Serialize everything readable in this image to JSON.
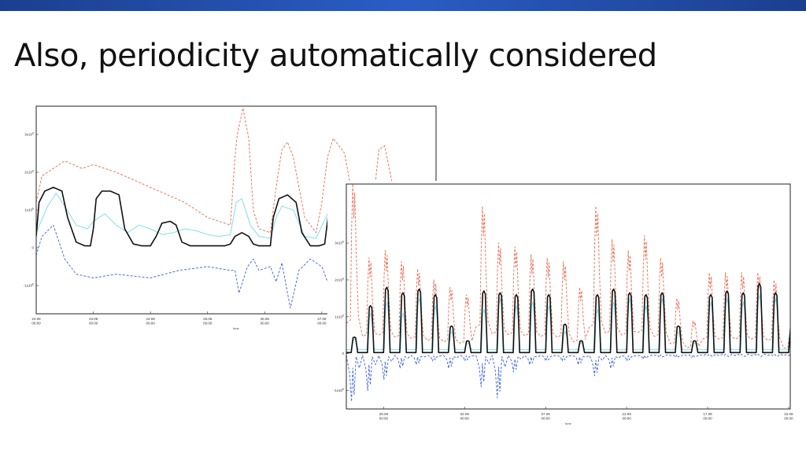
{
  "slide": {
    "title": "Also, periodicity automatically considered",
    "accent_color": "#1f4ea8"
  },
  "chart_data": [
    {
      "type": "line",
      "title": "",
      "xlabel": "time",
      "ylabel": "",
      "x_ticks": [
        [
          "22.08",
          "00:00"
        ],
        [
          "23.08",
          "00:00"
        ],
        [
          "24.08",
          "00:00"
        ],
        [
          "25.08",
          "00:00"
        ],
        [
          "26.08",
          "00:00"
        ],
        [
          "27.08",
          "00:00"
        ],
        [
          "28.08",
          "00:00"
        ],
        [
          "29.08",
          "00:00"
        ]
      ],
      "xlim": [
        0,
        7
      ],
      "y_ticks": [
        "-1x10⁶",
        "0",
        "1x10⁶",
        "2x10⁶",
        "3x10⁶"
      ],
      "y_tick_values": [
        -1,
        0,
        1,
        2,
        3
      ],
      "ylim": [
        -1.75,
        3.75
      ],
      "y_unit": "1e6",
      "grid": false,
      "legend": "none",
      "series": [
        {
          "role": "upper-bound",
          "style": "dashed",
          "color": "#e8775f",
          "x": [
            0,
            0.1,
            0.3,
            0.5,
            0.8,
            1.0,
            1.4,
            2.0,
            2.6,
            3.0,
            3.4,
            3.48,
            3.52,
            3.62,
            3.72,
            3.8,
            3.9,
            4.1,
            4.2,
            4.3,
            4.4,
            4.5,
            4.7,
            4.9,
            5.0,
            5.1,
            5.2,
            5.4,
            5.6,
            5.8,
            5.9,
            6.0,
            6.1,
            6.3,
            6.5,
            6.7,
            6.9,
            7.0
          ],
          "y": [
            1.2,
            1.9,
            2.1,
            2.3,
            2.1,
            2.2,
            2.0,
            1.6,
            1.2,
            0.8,
            0.6,
            2.4,
            3.0,
            3.7,
            2.9,
            1.0,
            0.5,
            0.4,
            1.6,
            2.6,
            2.8,
            2.4,
            0.8,
            0.4,
            1.2,
            2.4,
            2.9,
            2.5,
            0.8,
            0.5,
            1.2,
            2.6,
            2.7,
            1.2,
            0.8,
            0.4,
            0.35,
            0.3
          ]
        },
        {
          "role": "lower-bound",
          "style": "dashed",
          "color": "#4a6fd8",
          "x": [
            0,
            0.1,
            0.3,
            0.5,
            0.7,
            1.0,
            1.4,
            2.0,
            2.5,
            3.0,
            3.4,
            3.48,
            3.55,
            3.7,
            3.8,
            3.9,
            4.1,
            4.2,
            4.3,
            4.45,
            4.6,
            4.8,
            5.0,
            5.1,
            5.2,
            5.4,
            5.6,
            5.8,
            6.0,
            6.1,
            6.3,
            6.5,
            7.0
          ],
          "y": [
            -0.2,
            0.3,
            0.6,
            -0.3,
            -0.7,
            -0.8,
            -0.7,
            -0.8,
            -0.6,
            -0.5,
            -0.6,
            -0.6,
            -1.2,
            -0.5,
            -0.3,
            -0.6,
            -0.5,
            -0.9,
            -0.4,
            -1.6,
            -0.6,
            -0.3,
            -0.5,
            -0.9,
            -0.3,
            -0.5,
            -0.4,
            -0.7,
            -0.3,
            0.3,
            -0.2,
            -0.25,
            -0.2
          ]
        },
        {
          "role": "expected",
          "style": "solid",
          "color": "#7fe0e8",
          "x": [
            0,
            0.2,
            0.35,
            0.5,
            0.7,
            0.9,
            1.0,
            1.2,
            1.4,
            1.6,
            1.8,
            2.0,
            2.2,
            2.4,
            2.6,
            2.8,
            3.0,
            3.2,
            3.4,
            3.5,
            3.6,
            3.75,
            3.9,
            4.1,
            4.2,
            4.3,
            4.5,
            4.7,
            4.9,
            5.1,
            5.2,
            5.4,
            5.6,
            5.8,
            5.9,
            6.0,
            6.2,
            6.4,
            6.6,
            7.0
          ],
          "y": [
            0.4,
            1.1,
            1.45,
            1.1,
            0.6,
            0.5,
            0.7,
            0.9,
            0.6,
            0.4,
            0.6,
            0.5,
            0.35,
            0.4,
            0.5,
            0.45,
            0.35,
            0.3,
            0.35,
            1.2,
            1.3,
            0.6,
            0.3,
            0.25,
            0.8,
            1.1,
            1.0,
            0.3,
            0.25,
            0.9,
            1.2,
            0.9,
            0.3,
            0.2,
            0.6,
            1.4,
            1.3,
            0.25,
            0.2,
            0.2
          ]
        },
        {
          "role": "observed",
          "style": "solid",
          "color": "#111111",
          "x": [
            0,
            0.05,
            0.15,
            0.3,
            0.45,
            0.55,
            0.7,
            0.85,
            0.95,
            1.0,
            1.05,
            1.15,
            1.3,
            1.45,
            1.55,
            1.7,
            1.85,
            2.0,
            2.1,
            2.2,
            2.35,
            2.45,
            2.55,
            2.7,
            3.0,
            3.3,
            3.4,
            3.48,
            3.6,
            3.72,
            3.8,
            3.9,
            4.0,
            4.1,
            4.15,
            4.25,
            4.4,
            4.55,
            4.65,
            4.8,
            4.95,
            5.05,
            5.15,
            5.3,
            5.45,
            5.55,
            5.7,
            5.85,
            6.0,
            6.05,
            6.15,
            6.3,
            6.45,
            6.55,
            6.7,
            7.0
          ],
          "y": [
            0.3,
            1.2,
            1.5,
            1.6,
            1.5,
            0.8,
            0.15,
            0.05,
            0.05,
            0.5,
            1.3,
            1.5,
            1.5,
            1.4,
            0.5,
            0.1,
            0.05,
            0.05,
            0.3,
            0.65,
            0.7,
            0.6,
            0.15,
            0.05,
            0.05,
            0.05,
            0.1,
            0.3,
            0.4,
            0.3,
            0.1,
            0.05,
            0.05,
            0.05,
            0.8,
            1.3,
            1.4,
            1.2,
            0.4,
            0.05,
            0.05,
            0.1,
            1.3,
            1.6,
            1.6,
            0.8,
            0.1,
            0.05,
            0.05,
            0.8,
            1.5,
            1.6,
            1.4,
            0.5,
            0.05,
            0.05
          ]
        }
      ]
    },
    {
      "type": "line",
      "title": "",
      "xlabel": "time",
      "ylabel": "",
      "x_ticks": [
        [
          "28.08",
          "00:00"
        ],
        [
          "02.09",
          "00:00"
        ],
        [
          "07.09",
          "00:00"
        ],
        [
          "12.09",
          "00:00"
        ],
        [
          "17.09",
          "00:00"
        ],
        [
          "22.09",
          "00:00"
        ]
      ],
      "xlim": [
        0,
        27.4
      ],
      "y_ticks": [
        "-1x10⁶",
        "0",
        "1x10⁶",
        "2x10⁶",
        "3x10⁶"
      ],
      "y_tick_values": [
        -1,
        0,
        1,
        2,
        3
      ],
      "ylim": [
        -1.5,
        4.6
      ],
      "y_unit": "1e6",
      "grid": false,
      "legend": "none",
      "daily_peaks": {
        "day_index": [
          0,
          1,
          2,
          3,
          4,
          5,
          6,
          7,
          8,
          9,
          10,
          11,
          12,
          13,
          14,
          15,
          16,
          17,
          18,
          19,
          20,
          21,
          22,
          23,
          24,
          25,
          26,
          27
        ],
        "observed_peak": [
          0.45,
          1.3,
          1.8,
          1.65,
          1.75,
          1.6,
          0.75,
          0.35,
          1.7,
          1.65,
          1.6,
          1.75,
          1.6,
          0.8,
          0.35,
          1.6,
          1.75,
          1.65,
          1.6,
          1.65,
          0.75,
          0.35,
          1.6,
          1.7,
          1.65,
          1.9,
          1.65,
          0.75
        ],
        "expected_peak": [
          0.4,
          1.1,
          1.4,
          1.1,
          1.5,
          1.3,
          0.6,
          0.3,
          1.2,
          1.5,
          1.3,
          1.4,
          1.3,
          0.6,
          0.3,
          1.2,
          1.4,
          1.5,
          1.3,
          1.5,
          0.6,
          0.3,
          1.4,
          1.5,
          1.4,
          1.6,
          1.5,
          0.6
        ],
        "upper_peak": [
          4.6,
          2.6,
          2.8,
          2.5,
          2.3,
          2.0,
          1.8,
          1.6,
          4.0,
          3.0,
          2.9,
          2.7,
          2.6,
          2.5,
          1.8,
          4.0,
          3.1,
          2.8,
          3.2,
          2.6,
          1.5,
          0.9,
          2.2,
          2.2,
          2.2,
          2.2,
          2.0,
          0.6
        ],
        "lower_trough": [
          -1.3,
          -1.0,
          -0.7,
          -0.4,
          -0.3,
          -0.2,
          -0.4,
          -0.2,
          -0.9,
          -1.2,
          -0.5,
          -0.3,
          -0.2,
          -0.2,
          -0.3,
          -0.6,
          -0.4,
          -0.2,
          -0.15,
          -0.1,
          -0.1,
          -0.1,
          -0.05,
          -0.05,
          -0.05,
          -0.05,
          -0.05,
          -0.05
        ]
      },
      "series": [
        {
          "role": "upper-bound",
          "style": "dashed",
          "color": "#e8775f"
        },
        {
          "role": "lower-bound",
          "style": "dashed",
          "color": "#4a6fd8"
        },
        {
          "role": "expected",
          "style": "solid",
          "color": "#7fe0e8"
        },
        {
          "role": "observed",
          "style": "solid",
          "color": "#111111"
        }
      ]
    }
  ]
}
